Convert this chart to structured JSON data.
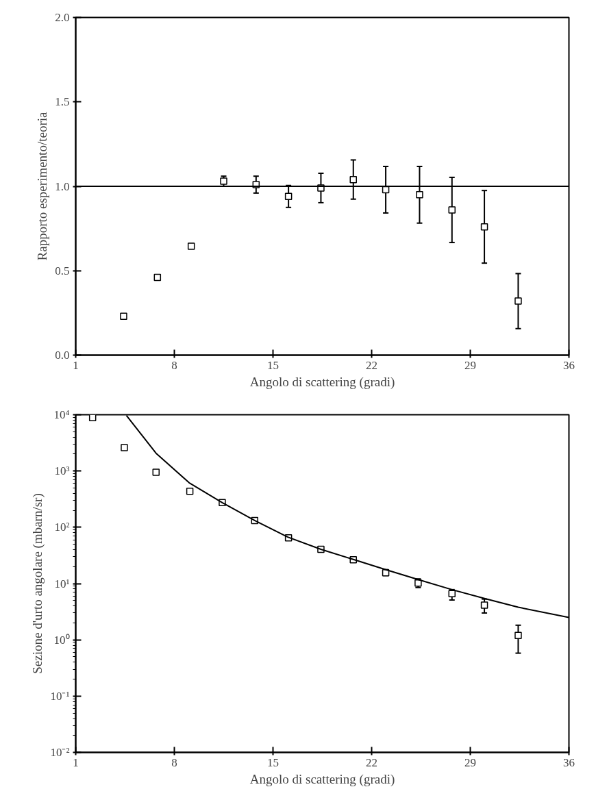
{
  "chart_data": [
    {
      "type": "scatter",
      "xlabel": "Angolo di scattering (gradi)",
      "ylabel": "Rapporto esperimento/teoria",
      "marker": "square",
      "grid": false,
      "xlim": [
        1,
        36
      ],
      "xticks": [
        1,
        8,
        15,
        22,
        29,
        36
      ],
      "ylim": [
        0,
        2
      ],
      "yticks": [
        {
          "value": 0,
          "label": "0.0"
        },
        {
          "value": 0.5,
          "label": "0.5"
        },
        {
          "value": 1,
          "label": "1.0"
        },
        {
          "value": 1.5,
          "label": "1.5"
        },
        {
          "value": 2,
          "label": "2.0"
        }
      ],
      "ref_lines": [
        {
          "axis": "y",
          "value": 1,
          "color": "#000000",
          "line_style": "solid"
        }
      ],
      "series": [
        {
          "color": "#000000",
          "x": [
            4.4,
            6.8,
            9.2,
            11.5,
            13.8,
            16.1,
            18.4,
            20.7,
            23.0,
            25.4,
            27.7,
            30.0,
            32.4
          ],
          "values": [
            0.23,
            0.46,
            0.645,
            1.03,
            1.01,
            0.94,
            0.99,
            1.04,
            0.98,
            0.95,
            0.86,
            0.76,
            0.32
          ],
          "errors": [
            null,
            null,
            null,
            0.03,
            0.05,
            0.065,
            0.087,
            0.116,
            0.138,
            0.168,
            0.193,
            0.215,
            0.163
          ]
        }
      ]
    },
    {
      "type": "scatter",
      "xlabel": "Angolo di scattering (gradi)",
      "ylabel": "Sezione d'urto angolare (mbarn/sr)",
      "marker": "square",
      "grid": false,
      "log": "y",
      "xlim": [
        1,
        36
      ],
      "xticks": [
        1,
        8,
        15,
        22,
        29,
        36
      ],
      "ylim": [
        0.01,
        10000
      ],
      "yticks": [
        {
          "value": 0.01,
          "label": "10⁻²"
        },
        {
          "value": 0.1,
          "label": "10⁻¹"
        },
        {
          "value": 1,
          "label": "10⁰"
        },
        {
          "value": 10,
          "label": "10¹"
        },
        {
          "value": 100,
          "label": "10²"
        },
        {
          "value": 1000,
          "label": "10³"
        },
        {
          "value": 10000,
          "label": "10⁴"
        }
      ],
      "series": [
        {
          "color": "#000000",
          "x": [
            2.2,
            4.45,
            6.7,
            9.1,
            11.4,
            13.7,
            16.1,
            18.4,
            20.7,
            23.0,
            25.3,
            27.7,
            30.0,
            32.4
          ],
          "values": [
            8850,
            2600,
            950,
            435,
            274,
            132,
            65,
            40.6,
            26.4,
            15.5,
            10.2,
            6.6,
            4.15,
            1.2
          ],
          "errors": [
            null,
            null,
            null,
            null,
            null,
            null,
            null,
            null,
            null,
            [
              13.9,
              17.7
            ],
            [
              8.5,
              12.1
            ],
            [
              5.1,
              7.8
            ],
            [
              3.0,
              5.3
            ],
            [
              0.58,
              1.82
            ]
          ]
        },
        {
          "type": "line",
          "color": "#000000",
          "line_style": "solid",
          "marker": "none",
          "x": [
            4.6,
            6.7,
            9.05,
            11.4,
            13.7,
            16.05,
            18.4,
            20.7,
            23.05,
            25.4,
            27.7,
            30.05,
            32.4,
            36
          ],
          "values": [
            9700,
            2070,
            618,
            274,
            132,
            67,
            40.6,
            26.8,
            17.5,
            11.6,
            7.8,
            5.4,
            3.8,
            2.5
          ]
        }
      ]
    }
  ]
}
